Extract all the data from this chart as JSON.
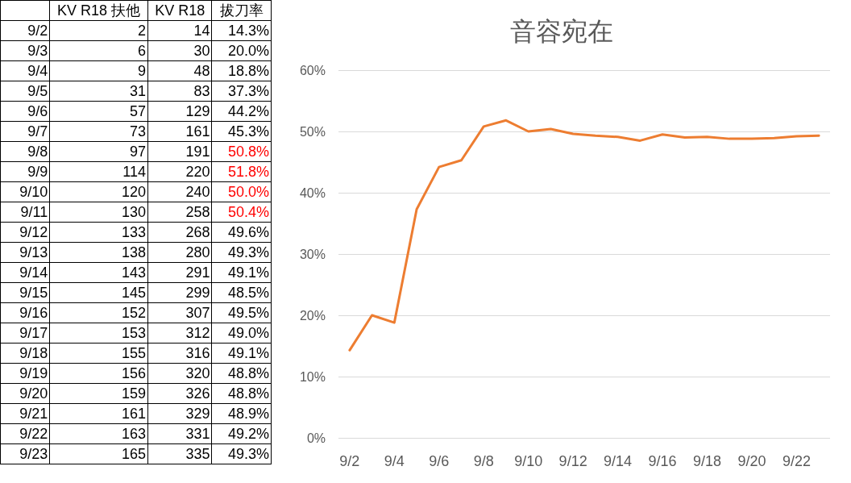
{
  "chart_data": [
    {
      "type": "other",
      "data_labels": true,
      "categories": [
        "9/2",
        "9/3",
        "9/4",
        "9/5",
        "9/6",
        "9/7",
        "9/8",
        "9/9",
        "9/10",
        "9/11",
        "9/12",
        "9/13",
        "9/14",
        "9/15",
        "9/16",
        "9/17",
        "9/18",
        "9/19",
        "9/20",
        "9/21",
        "9/22",
        "9/23"
      ],
      "series": [
        {
          "name": "KV R18 扶他",
          "values": [
            2,
            6,
            9,
            31,
            57,
            73,
            97,
            114,
            120,
            130,
            133,
            138,
            143,
            145,
            152,
            153,
            155,
            156,
            159,
            161,
            163,
            165
          ]
        },
        {
          "name": "KV R18",
          "values": [
            14,
            30,
            48,
            83,
            129,
            161,
            191,
            220,
            240,
            258,
            268,
            280,
            291,
            299,
            307,
            312,
            316,
            320,
            326,
            329,
            331,
            335
          ]
        },
        {
          "name": "拔刀率",
          "values": [
            14.3,
            20.0,
            18.8,
            37.3,
            44.2,
            45.3,
            50.8,
            51.8,
            50.0,
            50.4,
            49.6,
            49.3,
            49.1,
            48.5,
            49.5,
            49.0,
            49.1,
            48.8,
            48.8,
            48.9,
            49.2,
            49.3
          ],
          "value_labels": [
            "14.3%",
            "20.0%",
            "18.8%",
            "37.3%",
            "44.2%",
            "45.3%",
            "50.8%",
            "51.8%",
            "50.0%",
            "50.4%",
            "49.6%",
            "49.3%",
            "49.1%",
            "48.5%",
            "49.5%",
            "49.0%",
            "49.1%",
            "48.8%",
            "48.8%",
            "48.9%",
            "49.2%",
            "49.3%"
          ],
          "colors": [
            "#000000",
            "#000000",
            "#000000",
            "#000000",
            "#000000",
            "#000000",
            "#ff0000",
            "#ff0000",
            "#ff0000",
            "#ff0000",
            "#000000",
            "#000000",
            "#000000",
            "#000000",
            "#000000",
            "#000000",
            "#000000",
            "#000000",
            "#000000",
            "#000000",
            "#000000",
            "#000000"
          ]
        }
      ]
    },
    {
      "type": "line",
      "title": "音容宛在",
      "categories": [
        "9/2",
        null,
        "9/4",
        null,
        "9/6",
        null,
        "9/8",
        null,
        "9/10",
        null,
        "9/12",
        null,
        "9/14",
        null,
        "9/16",
        null,
        "9/18",
        null,
        "9/20",
        null,
        "9/22",
        null
      ],
      "series": [
        {
          "color": "#ed7d31",
          "values": [
            14.3,
            20.0,
            18.8,
            37.3,
            44.2,
            45.3,
            50.8,
            51.8,
            50.0,
            50.4,
            49.6,
            49.3,
            49.1,
            48.5,
            49.5,
            49.0,
            49.1,
            48.8,
            48.8,
            48.9,
            49.2,
            49.3
          ]
        }
      ],
      "ylim": [
        0,
        60
      ],
      "yticks": [
        {
          "value": 0,
          "label": "0%"
        },
        {
          "value": 10,
          "label": "10%"
        },
        {
          "value": 20,
          "label": "20%"
        },
        {
          "value": 30,
          "label": "30%"
        },
        {
          "value": 40,
          "label": "40%"
        },
        {
          "value": 50,
          "label": "50%"
        },
        {
          "value": 60,
          "label": "60%"
        }
      ],
      "grid": "y",
      "marker": "none",
      "line_style": "solid"
    }
  ]
}
